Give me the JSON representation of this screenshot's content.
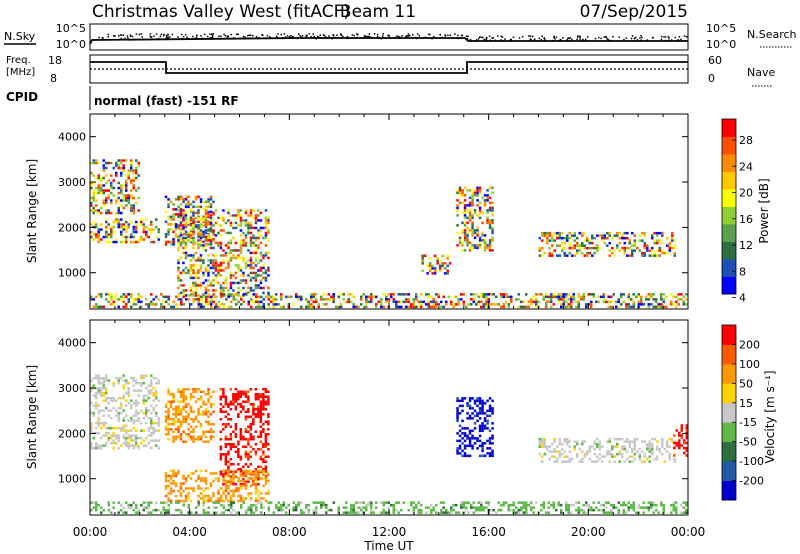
{
  "header": {
    "title": "Christmas Valley West (fitACF)",
    "beam": "Beam 11",
    "date": "07/Sep/2015"
  },
  "info_panels": {
    "nsky": {
      "label": "N.Sky",
      "ticks": [
        "10^5",
        "10^0"
      ],
      "right_label": "N.Search",
      "right_ticks": [
        "10^5",
        "10^0"
      ]
    },
    "freq": {
      "label_line1": "Freq.",
      "label_line2": "[MHz]",
      "ticks": [
        "18",
        "8"
      ],
      "right_label": "Nave",
      "right_ticks": [
        "60",
        "0"
      ]
    },
    "cpid": {
      "label": "CPID",
      "text": "normal (fast) -151 RF"
    }
  },
  "chart_data": [
    {
      "type": "heatmap",
      "title": "",
      "xlabel": "",
      "ylabel": "Slant Range [km]",
      "x_range_hours": [
        0,
        24
      ],
      "ylim": [
        200,
        4500
      ],
      "y_ticks": [
        "1000",
        "2000",
        "3000",
        "4000"
      ],
      "colorbar": {
        "label": "Power [dB]",
        "ticks": [
          "28",
          "24",
          "20",
          "16",
          "12",
          "8",
          "4"
        ],
        "colors": [
          "#0000ff",
          "#1c4fb8",
          "#2e6f3f",
          "#5aa14e",
          "#8fcf32",
          "#ffff00",
          "#ffc800",
          "#ff8c00",
          "#ff5000",
          "#ff0000"
        ]
      },
      "echo_regions": [
        {
          "name": "band-morning-upper",
          "t": [
            0.0,
            2.0
          ],
          "r": [
            2300,
            3500
          ]
        },
        {
          "name": "band-morning-mid",
          "t": [
            0.0,
            2.8
          ],
          "r": [
            1700,
            2200
          ]
        },
        {
          "name": "band-0300-0500",
          "t": [
            3.0,
            5.0
          ],
          "r": [
            1600,
            2700
          ]
        },
        {
          "name": "band-0400-0700",
          "t": [
            3.5,
            7.2
          ],
          "r": [
            500,
            2400
          ]
        },
        {
          "name": "patch-1300-1400",
          "t": [
            13.3,
            14.5
          ],
          "r": [
            1000,
            1400
          ]
        },
        {
          "name": "patch-1500",
          "t": [
            14.7,
            16.2
          ],
          "r": [
            1500,
            2900
          ]
        },
        {
          "name": "band-evening",
          "t": [
            18.0,
            23.5
          ],
          "r": [
            1400,
            1900
          ]
        },
        {
          "name": "band-near-ground",
          "t": [
            0.0,
            24.0
          ],
          "r": [
            250,
            550
          ]
        }
      ]
    },
    {
      "type": "heatmap",
      "title": "",
      "xlabel": "Time UT",
      "ylabel": "Slant Range [km]",
      "x_range_hours": [
        0,
        24
      ],
      "x_ticks": [
        "00:00",
        "04:00",
        "08:00",
        "12:00",
        "16:00",
        "20:00",
        "00:00"
      ],
      "ylim": [
        200,
        4500
      ],
      "y_ticks": [
        "1000",
        "2000",
        "3000",
        "4000"
      ],
      "colorbar": {
        "label": "Velocity [m s⁻¹]",
        "ticks": [
          "200",
          "100",
          "50",
          "15",
          "-15",
          "-50",
          "-100",
          "-200"
        ],
        "colors": [
          "#0000cc",
          "#1f5aa8",
          "#2e6f3f",
          "#5fb84a",
          "#c8c8c8",
          "#ffd400",
          "#ff9800",
          "#ff5a00",
          "#ff0000"
        ]
      },
      "echo_regions": [
        {
          "name": "grey-morning",
          "t": [
            0.0,
            2.8
          ],
          "r": [
            1700,
            3300
          ],
          "color_index": 4
        },
        {
          "name": "orange-0300-0500",
          "t": [
            3.0,
            5.0
          ],
          "r": [
            1800,
            3000
          ],
          "color_index": 6
        },
        {
          "name": "red-0500-0700",
          "t": [
            5.2,
            7.2
          ],
          "r": [
            900,
            3000
          ],
          "color_index": 8
        },
        {
          "name": "orange-low-0300-0700",
          "t": [
            3.0,
            7.2
          ],
          "r": [
            500,
            1200
          ],
          "color_index": 6
        },
        {
          "name": "blue-1500",
          "t": [
            14.7,
            16.2
          ],
          "r": [
            1500,
            2800
          ],
          "color_index": 0
        },
        {
          "name": "grey-evening",
          "t": [
            18.0,
            23.5
          ],
          "r": [
            1400,
            1900
          ],
          "color_index": 4
        },
        {
          "name": "red-2300",
          "t": [
            23.4,
            24.0
          ],
          "r": [
            1500,
            2200
          ],
          "color_index": 8
        },
        {
          "name": "ground-scatter-band",
          "t": [
            0.0,
            24.0
          ],
          "r": [
            250,
            500
          ],
          "color_index": 3
        }
      ]
    }
  ]
}
